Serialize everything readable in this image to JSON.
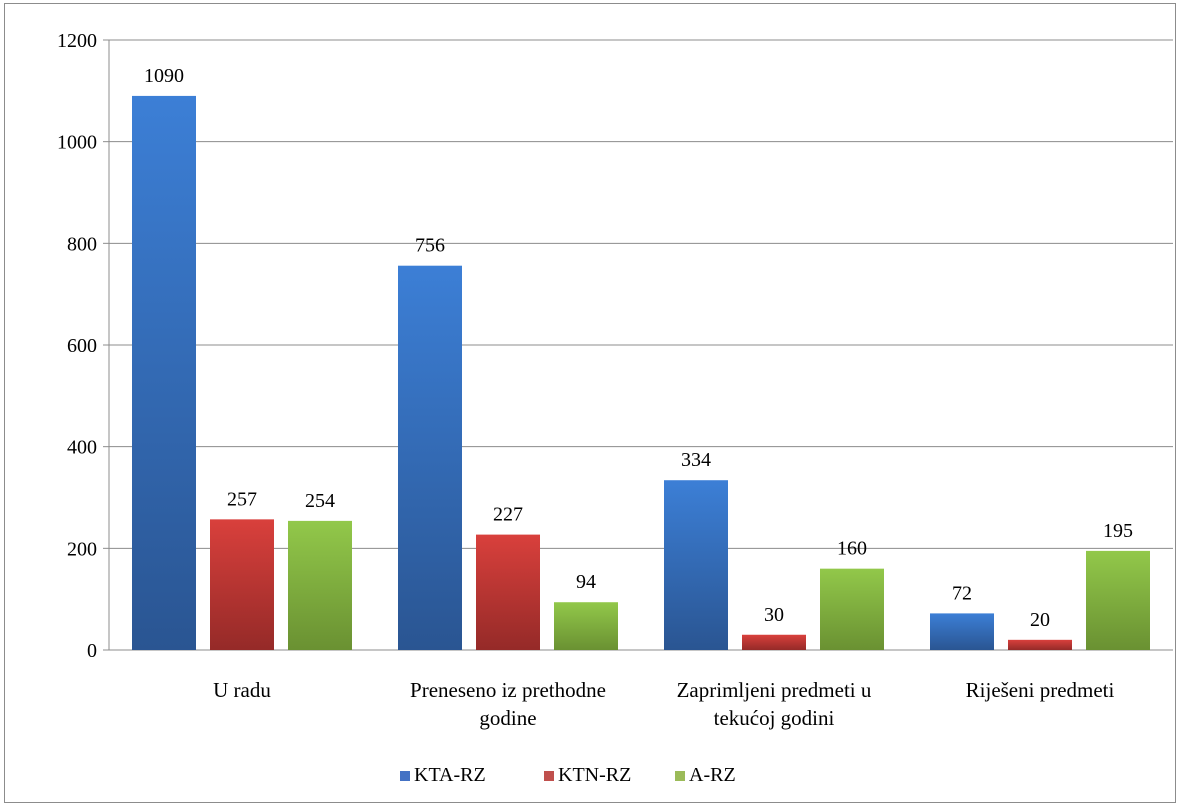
{
  "chart_data": {
    "type": "bar",
    "title": "",
    "xlabel": "",
    "ylabel": "",
    "ylim": [
      0,
      1200
    ],
    "yticks": [
      0,
      200,
      400,
      600,
      800,
      1000,
      1200
    ],
    "grid": true,
    "legend_position": "bottom",
    "categories": [
      [
        "U radu"
      ],
      [
        "Preneseno iz prethodne",
        "godine"
      ],
      [
        "Zaprimljeni predmeti u",
        "tekućoj godini"
      ],
      [
        "Riješeni predmeti"
      ]
    ],
    "series": [
      {
        "name": "KTA-RZ",
        "color": "#4472c4",
        "values": [
          1090,
          756,
          334,
          72
        ]
      },
      {
        "name": "KTN-RZ",
        "color": "#c0504d",
        "values": [
          257,
          227,
          30,
          20
        ]
      },
      {
        "name": "A-RZ",
        "color": "#9bbb59",
        "values": [
          254,
          94,
          160,
          195
        ]
      }
    ]
  }
}
